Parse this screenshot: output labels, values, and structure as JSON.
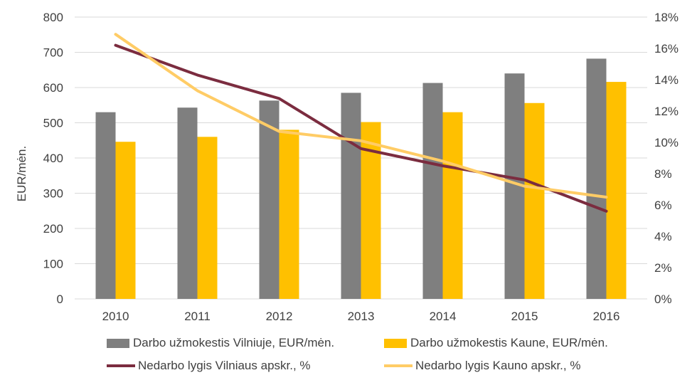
{
  "chart_data": {
    "type": "bar+line",
    "categories": [
      "2010",
      "2011",
      "2012",
      "2013",
      "2014",
      "2015",
      "2016"
    ],
    "bar_series": [
      {
        "name": "Darbo užmokestis Vilniuje, EUR/mėn.",
        "values": [
          530,
          543,
          563,
          585,
          613,
          640,
          682
        ],
        "color": "#7f7f7f"
      },
      {
        "name": "Darbo užmokestis Kaune, EUR/mėn.",
        "values": [
          446,
          460,
          480,
          502,
          530,
          556,
          616
        ],
        "color": "#ffc000"
      }
    ],
    "line_series": [
      {
        "name": "Nedarbo lygis Vilniaus apskr., %",
        "values": [
          16.2,
          14.3,
          12.8,
          9.6,
          8.5,
          7.6,
          5.6
        ],
        "color": "#7b2c3f"
      },
      {
        "name": "Nedarbo lygis Kauno apskr., %",
        "values": [
          16.9,
          13.3,
          10.7,
          10.1,
          8.8,
          7.2,
          6.5
        ],
        "color": "#ffcc66"
      }
    ],
    "y_left": {
      "label": "EUR/mėn.",
      "min": 0,
      "max": 800,
      "step": 100
    },
    "y_right": {
      "min": 0,
      "max": 18,
      "step": 2,
      "suffix": "%"
    },
    "grid": true,
    "legend_position": "bottom"
  }
}
